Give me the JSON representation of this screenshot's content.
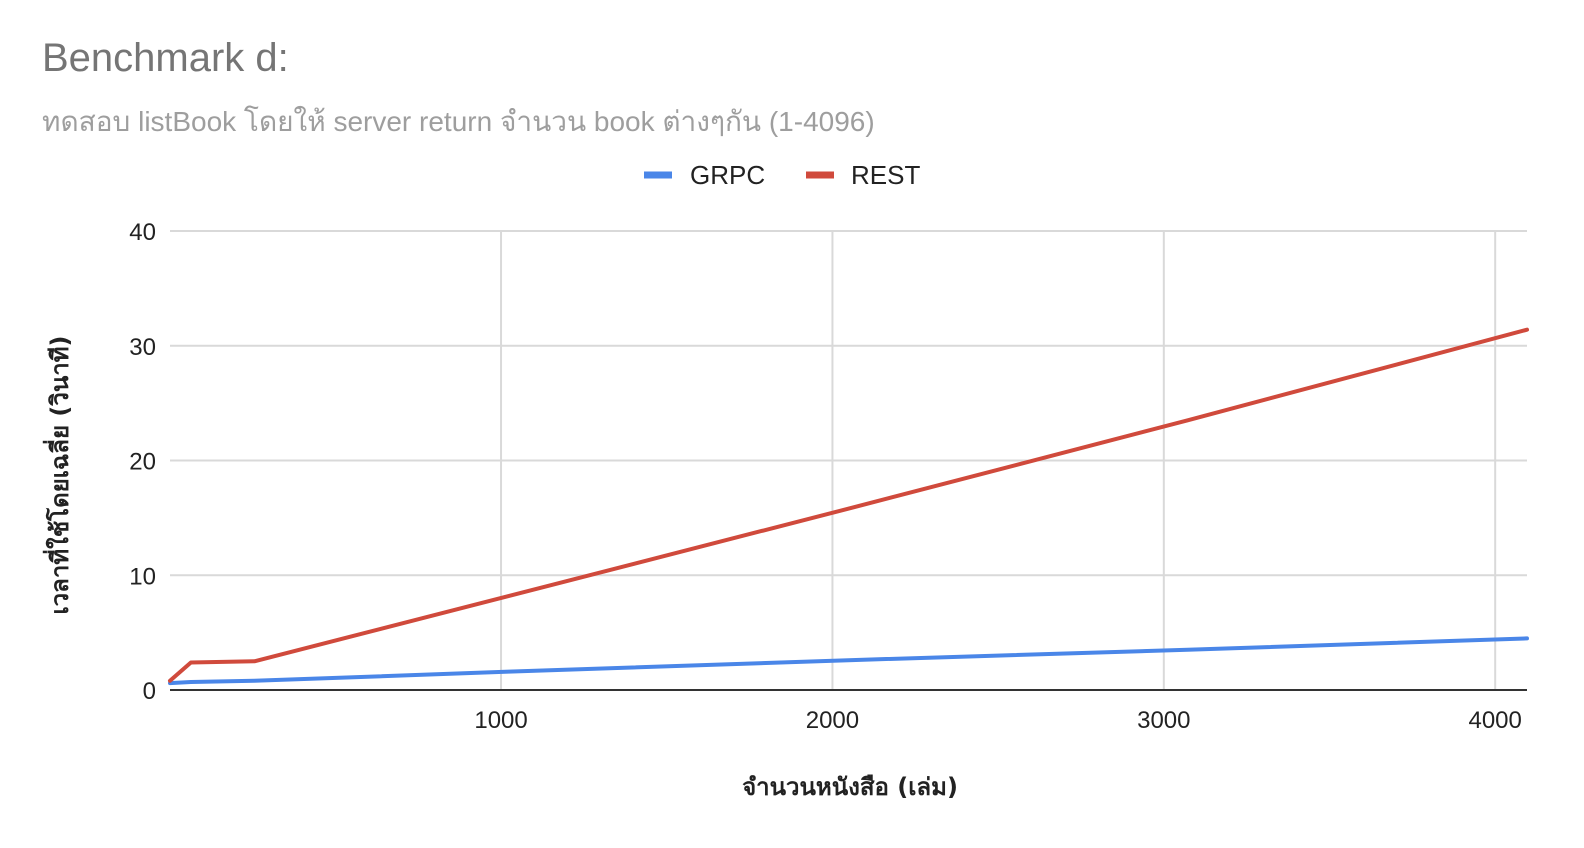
{
  "chart_data": {
    "type": "line",
    "title": "Benchmark d:",
    "subtitle": "ทดสอบ listBook โดยให้ server return จำนวน book ต่างๆกัน (1-4096)",
    "xlabel": "จำนวนหนังสือ (เล่ม)",
    "ylabel": "เวลาที่ใช้โดยเฉลี่ย (วินาที)",
    "xlim": [
      1,
      4096
    ],
    "ylim": [
      0,
      40
    ],
    "xticks": [
      1000,
      2000,
      3000,
      4000
    ],
    "yticks": [
      0,
      10,
      20,
      30,
      40
    ],
    "grid": true,
    "legend_position": "top",
    "x": [
      1,
      64,
      256,
      1024,
      2048,
      3072,
      4096
    ],
    "series": [
      {
        "name": "GRPC",
        "color": "#4a86e8",
        "values": [
          0.6,
          0.7,
          0.8,
          1.6,
          2.6,
          3.5,
          4.5
        ]
      },
      {
        "name": "REST",
        "color": "#d04a3c",
        "values": [
          0.8,
          2.4,
          2.5,
          8.2,
          15.8,
          23.5,
          31.4
        ]
      }
    ]
  }
}
